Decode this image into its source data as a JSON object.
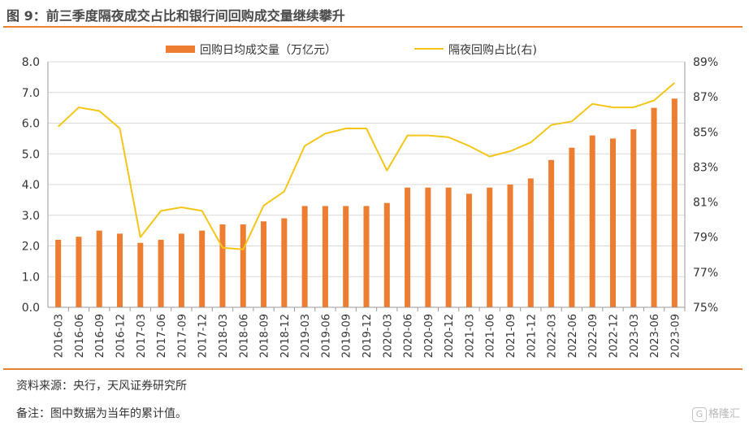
{
  "title": "图 9：前三季度隔夜成交占比和银行间回购成交量继续攀升",
  "source": "资料来源：央行，天风证券研究所",
  "note": "备注：图中数据为当年的累计值。",
  "watermark": "格隆汇",
  "watermark_glyph": "G",
  "colors": {
    "bar": "#ed7d31",
    "line": "#f5c518",
    "accent": "#e8822f"
  },
  "chart_data": {
    "type": "bar",
    "categories": [
      "2016-03",
      "2016-06",
      "2016-09",
      "2016-12",
      "2017-03",
      "2017-06",
      "2017-09",
      "2017-12",
      "2018-03",
      "2018-06",
      "2018-09",
      "2018-12",
      "2019-03",
      "2019-06",
      "2019-09",
      "2019-12",
      "2020-03",
      "2020-06",
      "2020-09",
      "2020-12",
      "2021-03",
      "2021-06",
      "2021-09",
      "2021-12",
      "2022-03",
      "2022-06",
      "2022-09",
      "2022-12",
      "2023-03",
      "2023-06",
      "2023-09"
    ],
    "series": [
      {
        "name": "回购日均成交量（万亿元）",
        "type": "bar",
        "axis": "left",
        "values": [
          2.2,
          2.3,
          2.5,
          2.4,
          2.1,
          2.2,
          2.4,
          2.5,
          2.7,
          2.7,
          2.8,
          2.9,
          3.3,
          3.3,
          3.3,
          3.3,
          3.4,
          3.9,
          3.9,
          3.9,
          3.7,
          3.9,
          4.0,
          4.2,
          4.8,
          5.2,
          5.6,
          5.5,
          5.8,
          6.5,
          6.8
        ]
      },
      {
        "name": "隔夜回购占比(右)",
        "type": "line",
        "axis": "right",
        "values": [
          85.3,
          86.4,
          86.2,
          85.2,
          79.0,
          80.5,
          80.7,
          80.5,
          78.4,
          78.3,
          80.8,
          81.6,
          84.2,
          84.9,
          85.2,
          85.2,
          82.8,
          84.8,
          84.8,
          84.7,
          84.2,
          83.6,
          83.9,
          84.4,
          85.4,
          85.6,
          86.6,
          86.4,
          86.4,
          86.8,
          87.8
        ]
      }
    ],
    "ylim_left": [
      0,
      8
    ],
    "yticks_left": [
      "0.0",
      "1.0",
      "2.0",
      "3.0",
      "4.0",
      "5.0",
      "6.0",
      "7.0",
      "8.0"
    ],
    "ylim_right": [
      75,
      89
    ],
    "yticks_right": [
      "75%",
      "77%",
      "79%",
      "81%",
      "83%",
      "85%",
      "87%",
      "89%"
    ],
    "grid": true,
    "legend_position": "top-center"
  }
}
